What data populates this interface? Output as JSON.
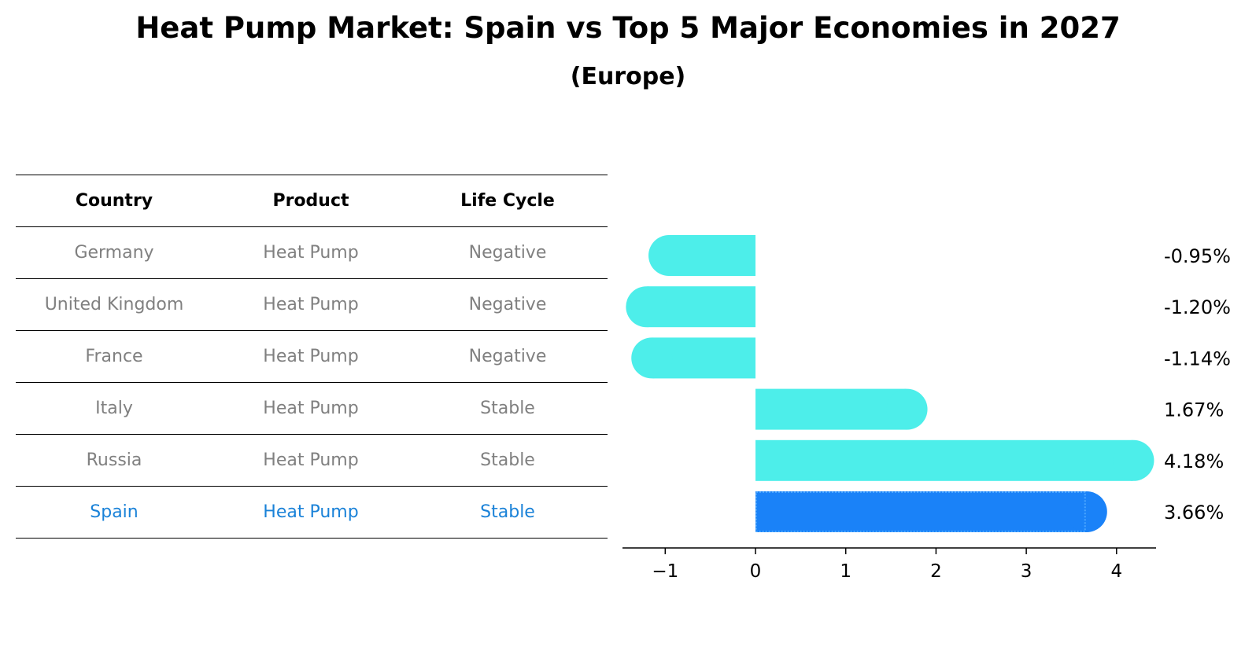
{
  "title": "Heat Pump Market: Spain vs Top 5 Major Economies in 2027",
  "subtitle": "(Europe)",
  "colors": {
    "bar": "#4deeea",
    "highlight": "#1a82f8",
    "highlight_text": "#1a82d8",
    "muted_text": "#808080"
  },
  "table": {
    "headers": [
      "Country",
      "Product",
      "Life Cycle"
    ],
    "rows": [
      [
        "Germany",
        "Heat Pump",
        "Negative"
      ],
      [
        "United Kingdom",
        "Heat Pump",
        "Negative"
      ],
      [
        "France",
        "Heat Pump",
        "Negative"
      ],
      [
        "Italy",
        "Heat Pump",
        "Stable"
      ],
      [
        "Russia",
        "Heat Pump",
        "Stable"
      ],
      [
        "Spain",
        "Heat Pump",
        "Stable"
      ]
    ]
  },
  "chart_data": {
    "type": "bar",
    "orientation": "horizontal",
    "categories": [
      "Germany",
      "United Kingdom",
      "France",
      "Italy",
      "Russia",
      "Spain"
    ],
    "values": [
      -0.95,
      -1.2,
      -1.14,
      1.67,
      4.18,
      3.66
    ],
    "value_labels": [
      "-0.95%",
      "-1.20%",
      "-1.14%",
      "1.67%",
      "4.18%",
      "3.66%"
    ],
    "highlight": "Spain",
    "xticks": [
      -1,
      0,
      1,
      2,
      3,
      4
    ],
    "xtick_labels": [
      "−1",
      "0",
      "1",
      "2",
      "3",
      "4"
    ],
    "xlim": [
      -1.47,
      4.46
    ]
  }
}
